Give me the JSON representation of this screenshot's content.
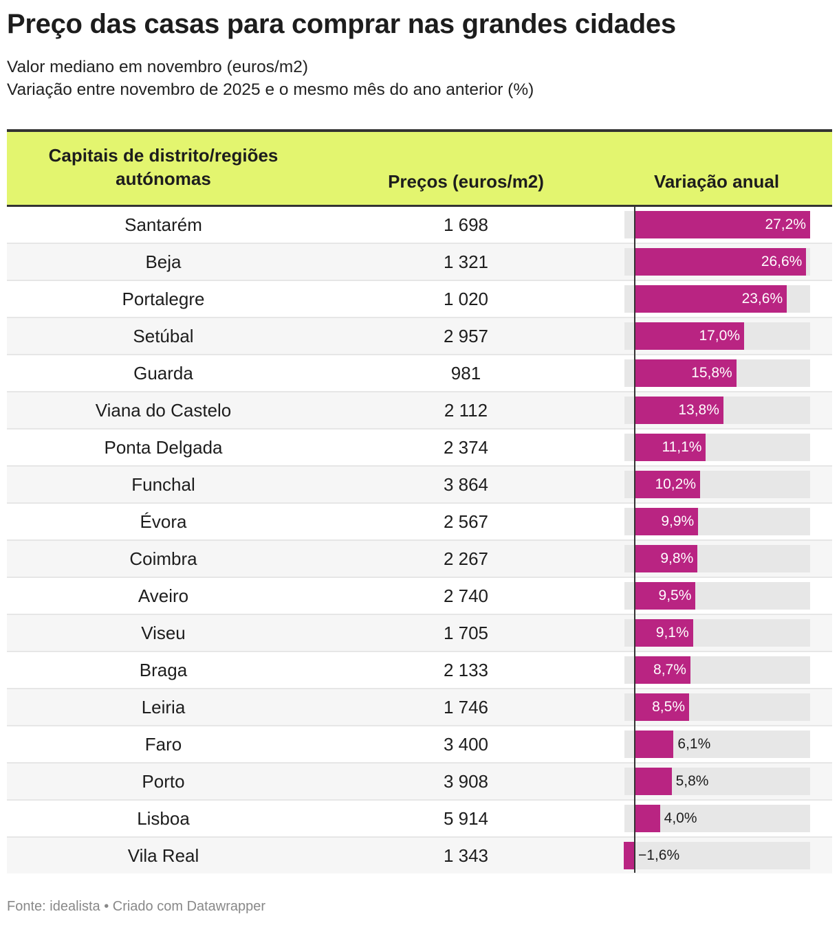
{
  "title": "Preço das casas para comprar nas grandes cidades",
  "subtitle_line1": "Valor mediano em novembro (euros/m2)",
  "subtitle_line2": "Variação entre novembro de 2025 e o mesmo mês do ano anterior (%)",
  "headers": {
    "col1": "Capitais de distrito/regiões autónomas",
    "col2": "Preços (euros/m2)",
    "col3": "Variação anual"
  },
  "footer": "Fonte: idealista • Criado com Datawrapper",
  "colors": {
    "header_bg": "#e3f56f",
    "bar": "#b92482",
    "track": "#e7e7e7",
    "row_alt": "#f6f6f6"
  },
  "chart_data": {
    "type": "table",
    "bar_column": "Variação anual",
    "bar_range": [
      -1.6,
      27.2
    ],
    "rows": [
      {
        "city": "Santarém",
        "price": "1 698",
        "change": 27.2,
        "label": "27,2%"
      },
      {
        "city": "Beja",
        "price": "1 321",
        "change": 26.6,
        "label": "26,6%"
      },
      {
        "city": "Portalegre",
        "price": "1 020",
        "change": 23.6,
        "label": "23,6%"
      },
      {
        "city": "Setúbal",
        "price": "2 957",
        "change": 17.0,
        "label": "17,0%"
      },
      {
        "city": "Guarda",
        "price": "981",
        "change": 15.8,
        "label": "15,8%"
      },
      {
        "city": "Viana do Castelo",
        "price": "2 112",
        "change": 13.8,
        "label": "13,8%"
      },
      {
        "city": "Ponta Delgada",
        "price": "2 374",
        "change": 11.1,
        "label": "11,1%"
      },
      {
        "city": "Funchal",
        "price": "3 864",
        "change": 10.2,
        "label": "10,2%"
      },
      {
        "city": "Évora",
        "price": "2 567",
        "change": 9.9,
        "label": "9,9%"
      },
      {
        "city": "Coimbra",
        "price": "2 267",
        "change": 9.8,
        "label": "9,8%"
      },
      {
        "city": "Aveiro",
        "price": "2 740",
        "change": 9.5,
        "label": "9,5%"
      },
      {
        "city": "Viseu",
        "price": "1 705",
        "change": 9.1,
        "label": "9,1%"
      },
      {
        "city": "Braga",
        "price": "2 133",
        "change": 8.7,
        "label": "8,7%"
      },
      {
        "city": "Leiria",
        "price": "1 746",
        "change": 8.5,
        "label": "8,5%"
      },
      {
        "city": "Faro",
        "price": "3 400",
        "change": 6.1,
        "label": "6,1%"
      },
      {
        "city": "Porto",
        "price": "3 908",
        "change": 5.8,
        "label": "5,8%"
      },
      {
        "city": "Lisboa",
        "price": "5 914",
        "change": 4.0,
        "label": "4,0%"
      },
      {
        "city": "Vila Real",
        "price": "1 343",
        "change": -1.6,
        "label": "−1,6%"
      }
    ]
  }
}
